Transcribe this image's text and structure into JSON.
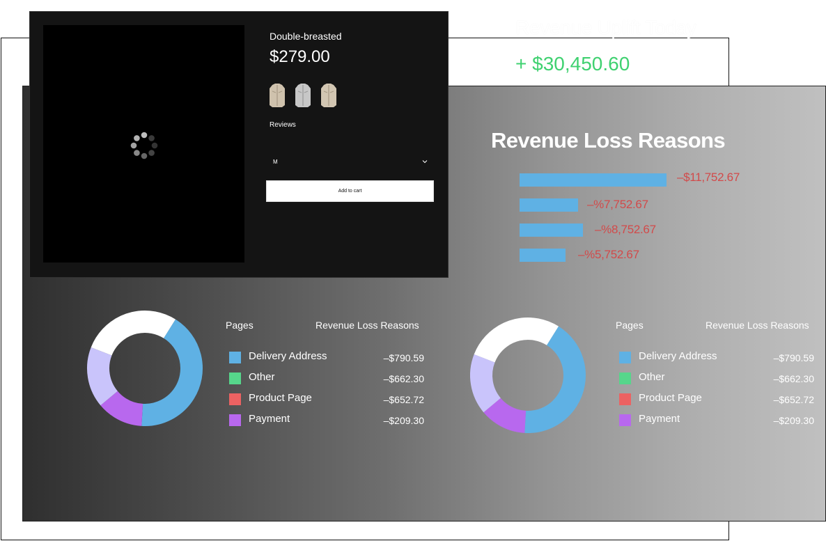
{
  "uplift": {
    "title": "Revenue Uplift Today",
    "value": "+ $30,450.60"
  },
  "loss_reasons": {
    "title": "Revenue Loss Reasons",
    "bars": [
      {
        "label": "–$11,752.67",
        "value": 11752.67
      },
      {
        "label": "–%7,752.67",
        "value": 7752.67
      },
      {
        "label": "–%8,752.67",
        "value": 8752.67
      },
      {
        "label": "–%5,752.67",
        "value": 5752.67
      }
    ]
  },
  "breakdown_panels": [
    {
      "col_pages": "Pages",
      "col_reasons": "Revenue Loss Reasons",
      "rows": [
        {
          "label": "Delivery Address",
          "value": "–$790.59",
          "color": "#5fb1e4"
        },
        {
          "label": "Other",
          "value": "–$662.30",
          "color": "#56d68b"
        },
        {
          "label": "Product Page",
          "value": "–$652.72",
          "color": "#ec6262"
        },
        {
          "label": "Payment",
          "value": "–$209.30",
          "color": "#b868ee"
        }
      ]
    },
    {
      "col_pages": "Pages",
      "col_reasons": "Revenue Loss Reasons",
      "rows": [
        {
          "label": "Delivery Address",
          "value": "–$790.59",
          "color": "#5fb1e4"
        },
        {
          "label": "Other",
          "value": "–$662.30",
          "color": "#56d68b"
        },
        {
          "label": "Product Page",
          "value": "–$652.72",
          "color": "#ec6262"
        },
        {
          "label": "Payment",
          "value": "–$209.30",
          "color": "#b868ee"
        }
      ]
    }
  ],
  "donut_segments": [
    {
      "color": "#5fb1e4",
      "fraction": 0.42
    },
    {
      "color": "#b868ee",
      "fraction": 0.13
    },
    {
      "color": "#c9c4fb",
      "fraction": 0.17
    },
    {
      "color": "#ffffff",
      "fraction": 0.28
    }
  ],
  "product": {
    "title": "Double-breasted",
    "price": "$279.00",
    "reviews_label": "Reviews",
    "size_value": "M",
    "add_to_cart_label": "Add to cart",
    "thumbnails": [
      "coat-thumbnail-beige",
      "coat-thumbnail-grey",
      "coat-thumbnail-beige"
    ]
  },
  "colors": {
    "accent_blue": "#5fb1e4",
    "loss_red": "#d24a4a",
    "uplift_green": "#3fd170"
  }
}
